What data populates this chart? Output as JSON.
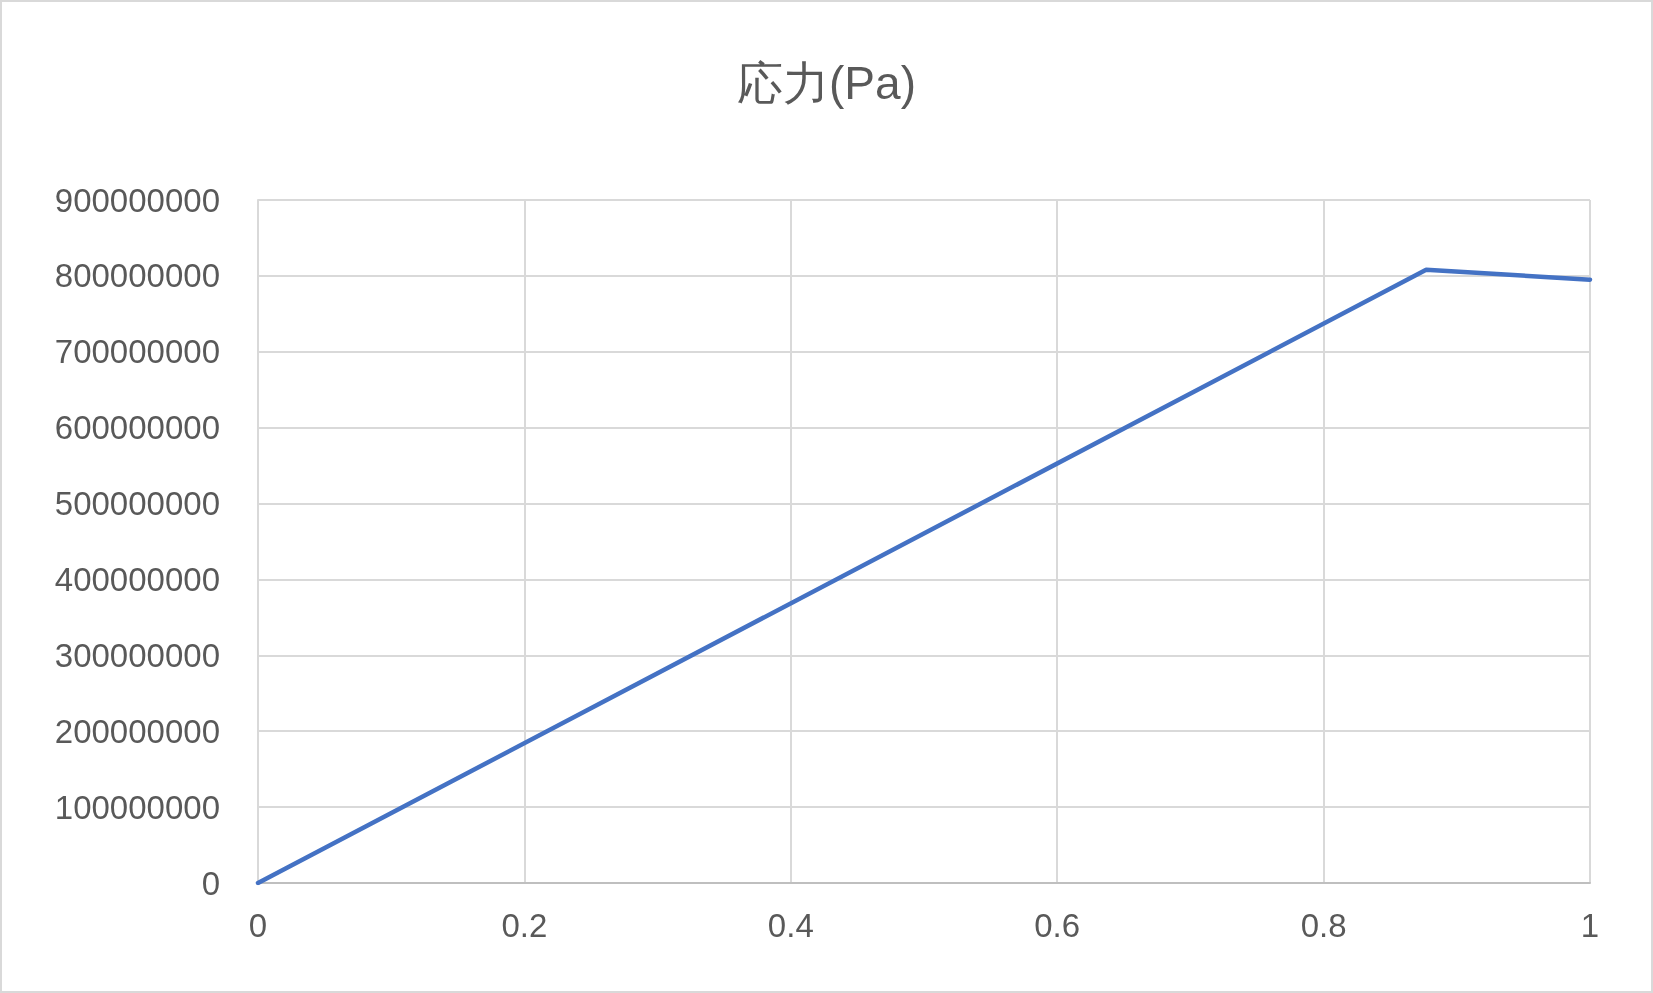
{
  "chart_data": {
    "type": "line",
    "title": "応力(Pa)",
    "x": [
      0,
      0.877,
      1
    ],
    "values": [
      0,
      808000000,
      795000000
    ],
    "color": "#4472c4",
    "xlim": [
      0,
      1
    ],
    "xticks": [
      0,
      0.2,
      0.4,
      0.6,
      0.8,
      1
    ],
    "ylim": [
      0,
      900000000
    ],
    "yticks": [
      0,
      100000000,
      200000000,
      300000000,
      400000000,
      500000000,
      600000000,
      700000000,
      800000000,
      900000000
    ],
    "grid": true,
    "marker": "none",
    "line_style": "solid"
  }
}
